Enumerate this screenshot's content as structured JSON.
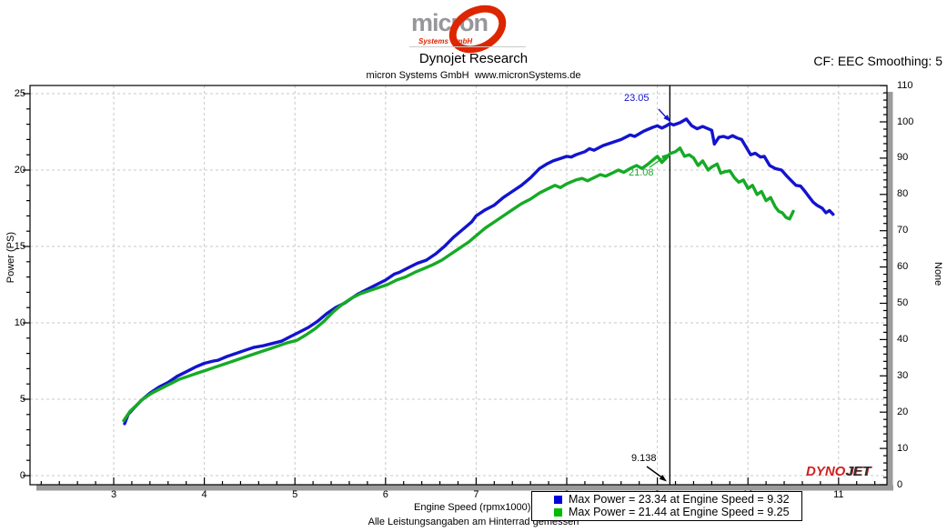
{
  "page": {
    "title": "Dynojet Research",
    "subtitle": "micron Systems GmbH  www.micronSystems.de",
    "cf_label": "CF: EEC Smoothing: 5",
    "footer_note": "Alle Leistungsangaben am Hinterrad gemessen"
  },
  "logo": {
    "text": "micron",
    "sub": "Systems GmbH"
  },
  "dynojet_logo": {
    "part1": "DYNO",
    "part2": "JET"
  },
  "legend": {
    "items": [
      {
        "color": "#0000dd",
        "label": "Max Power = 23.34 at Engine Speed = 9.32"
      },
      {
        "color": "#00bb00",
        "label": "Max Power = 21.44 at Engine Speed = 9.25"
      }
    ]
  },
  "chart_data": {
    "type": "line",
    "xlabel": "Engine Speed (rpmx1000)",
    "ylabel_left": "Power (PS)",
    "ylabel_right": "None",
    "x_ticks": [
      3,
      4,
      5,
      6,
      7,
      8,
      9,
      10,
      11
    ],
    "xlim": [
      2.08,
      11.53
    ],
    "y_left_ticks": [
      0,
      5,
      10,
      15,
      20,
      25
    ],
    "ylim_left": [
      -0.6,
      25.6
    ],
    "y_right_ticks": [
      0,
      10,
      20,
      30,
      40,
      50,
      60,
      70,
      80,
      90,
      100,
      110
    ],
    "ylim_right": [
      0,
      110.2
    ],
    "grid": true,
    "marker_line_x": 9.138,
    "annotations": [
      {
        "id": "blue-peak-at-marker",
        "text": "23.05",
        "color": "#1313cf"
      },
      {
        "id": "green-peak-at-marker",
        "text": "21.08",
        "color": "#16aa26"
      },
      {
        "id": "marker-speed",
        "text": "9.138",
        "color": "#000000"
      }
    ],
    "series": [
      {
        "name": "power-blue",
        "color": "#1313cf",
        "max_power": 23.34,
        "max_power_rpm": 9.32,
        "label": "Max Power = 23.34 at Engine Speed = 9.32",
        "points": [
          [
            3.12,
            3.4
          ],
          [
            3.16,
            4.0
          ],
          [
            3.22,
            4.4
          ],
          [
            3.3,
            4.9
          ],
          [
            3.4,
            5.4
          ],
          [
            3.5,
            5.8
          ],
          [
            3.6,
            6.1
          ],
          [
            3.7,
            6.5
          ],
          [
            3.8,
            6.8
          ],
          [
            3.9,
            7.1
          ],
          [
            4.0,
            7.35
          ],
          [
            4.1,
            7.5
          ],
          [
            4.15,
            7.55
          ],
          [
            4.25,
            7.8
          ],
          [
            4.35,
            8.0
          ],
          [
            4.45,
            8.2
          ],
          [
            4.55,
            8.4
          ],
          [
            4.65,
            8.5
          ],
          [
            4.75,
            8.65
          ],
          [
            4.85,
            8.8
          ],
          [
            4.95,
            9.1
          ],
          [
            5.05,
            9.4
          ],
          [
            5.15,
            9.7
          ],
          [
            5.25,
            10.1
          ],
          [
            5.35,
            10.6
          ],
          [
            5.45,
            11.0
          ],
          [
            5.55,
            11.3
          ],
          [
            5.65,
            11.7
          ],
          [
            5.7,
            11.9
          ],
          [
            5.8,
            12.2
          ],
          [
            5.9,
            12.5
          ],
          [
            6.0,
            12.8
          ],
          [
            6.1,
            13.2
          ],
          [
            6.15,
            13.3
          ],
          [
            6.25,
            13.6
          ],
          [
            6.35,
            13.9
          ],
          [
            6.45,
            14.1
          ],
          [
            6.55,
            14.5
          ],
          [
            6.65,
            15.0
          ],
          [
            6.75,
            15.6
          ],
          [
            6.85,
            16.1
          ],
          [
            6.95,
            16.6
          ],
          [
            7.0,
            17.0
          ],
          [
            7.1,
            17.4
          ],
          [
            7.2,
            17.7
          ],
          [
            7.3,
            18.2
          ],
          [
            7.4,
            18.6
          ],
          [
            7.5,
            19.0
          ],
          [
            7.6,
            19.5
          ],
          [
            7.7,
            20.1
          ],
          [
            7.78,
            20.4
          ],
          [
            7.85,
            20.6
          ],
          [
            7.95,
            20.8
          ],
          [
            8.0,
            20.9
          ],
          [
            8.05,
            20.85
          ],
          [
            8.1,
            21.0
          ],
          [
            8.2,
            21.2
          ],
          [
            8.25,
            21.4
          ],
          [
            8.3,
            21.3
          ],
          [
            8.4,
            21.6
          ],
          [
            8.5,
            21.8
          ],
          [
            8.6,
            22.0
          ],
          [
            8.7,
            22.3
          ],
          [
            8.75,
            22.2
          ],
          [
            8.85,
            22.55
          ],
          [
            8.95,
            22.8
          ],
          [
            9.0,
            22.9
          ],
          [
            9.05,
            22.75
          ],
          [
            9.1,
            22.9
          ],
          [
            9.14,
            23.05
          ],
          [
            9.18,
            22.95
          ],
          [
            9.25,
            23.1
          ],
          [
            9.32,
            23.34
          ],
          [
            9.38,
            22.9
          ],
          [
            9.44,
            22.7
          ],
          [
            9.5,
            22.85
          ],
          [
            9.56,
            22.7
          ],
          [
            9.6,
            22.6
          ],
          [
            9.63,
            21.7
          ],
          [
            9.68,
            22.15
          ],
          [
            9.73,
            22.2
          ],
          [
            9.78,
            22.1
          ],
          [
            9.83,
            22.25
          ],
          [
            9.88,
            22.1
          ],
          [
            9.93,
            22.0
          ],
          [
            9.98,
            21.5
          ],
          [
            10.03,
            21.0
          ],
          [
            10.08,
            21.1
          ],
          [
            10.14,
            20.85
          ],
          [
            10.18,
            20.9
          ],
          [
            10.24,
            20.3
          ],
          [
            10.3,
            20.1
          ],
          [
            10.37,
            20.0
          ],
          [
            10.43,
            19.6
          ],
          [
            10.48,
            19.3
          ],
          [
            10.53,
            19.0
          ],
          [
            10.58,
            18.95
          ],
          [
            10.63,
            18.6
          ],
          [
            10.68,
            18.2
          ],
          [
            10.72,
            17.9
          ],
          [
            10.76,
            17.7
          ],
          [
            10.82,
            17.5
          ],
          [
            10.86,
            17.2
          ],
          [
            10.9,
            17.35
          ],
          [
            10.94,
            17.1
          ]
        ]
      },
      {
        "name": "power-green",
        "color": "#16aa26",
        "max_power": 21.44,
        "max_power_rpm": 9.25,
        "label": "Max Power = 21.44 at Engine Speed = 9.25",
        "points": [
          [
            3.11,
            3.6
          ],
          [
            3.18,
            4.2
          ],
          [
            3.25,
            4.6
          ],
          [
            3.32,
            5.0
          ],
          [
            3.42,
            5.4
          ],
          [
            3.52,
            5.7
          ],
          [
            3.62,
            6.0
          ],
          [
            3.72,
            6.3
          ],
          [
            3.82,
            6.5
          ],
          [
            3.92,
            6.7
          ],
          [
            4.02,
            6.9
          ],
          [
            4.12,
            7.1
          ],
          [
            4.22,
            7.3
          ],
          [
            4.32,
            7.5
          ],
          [
            4.42,
            7.7
          ],
          [
            4.52,
            7.9
          ],
          [
            4.62,
            8.1
          ],
          [
            4.72,
            8.3
          ],
          [
            4.82,
            8.5
          ],
          [
            4.92,
            8.7
          ],
          [
            5.02,
            8.85
          ],
          [
            5.12,
            9.2
          ],
          [
            5.22,
            9.6
          ],
          [
            5.32,
            10.1
          ],
          [
            5.42,
            10.7
          ],
          [
            5.52,
            11.2
          ],
          [
            5.62,
            11.6
          ],
          [
            5.72,
            11.9
          ],
          [
            5.82,
            12.1
          ],
          [
            5.92,
            12.3
          ],
          [
            6.02,
            12.5
          ],
          [
            6.12,
            12.8
          ],
          [
            6.22,
            13.0
          ],
          [
            6.32,
            13.3
          ],
          [
            6.42,
            13.55
          ],
          [
            6.52,
            13.8
          ],
          [
            6.62,
            14.1
          ],
          [
            6.72,
            14.5
          ],
          [
            6.82,
            14.9
          ],
          [
            6.92,
            15.3
          ],
          [
            7.0,
            15.7
          ],
          [
            7.1,
            16.2
          ],
          [
            7.2,
            16.6
          ],
          [
            7.3,
            17.0
          ],
          [
            7.4,
            17.4
          ],
          [
            7.5,
            17.8
          ],
          [
            7.6,
            18.1
          ],
          [
            7.7,
            18.5
          ],
          [
            7.8,
            18.8
          ],
          [
            7.87,
            19.0
          ],
          [
            7.93,
            18.85
          ],
          [
            8.0,
            19.1
          ],
          [
            8.1,
            19.35
          ],
          [
            8.17,
            19.45
          ],
          [
            8.23,
            19.3
          ],
          [
            8.3,
            19.5
          ],
          [
            8.37,
            19.7
          ],
          [
            8.43,
            19.6
          ],
          [
            8.5,
            19.8
          ],
          [
            8.57,
            20.0
          ],
          [
            8.63,
            19.85
          ],
          [
            8.7,
            20.1
          ],
          [
            8.77,
            20.3
          ],
          [
            8.83,
            20.1
          ],
          [
            8.9,
            20.4
          ],
          [
            8.96,
            20.7
          ],
          [
            9.0,
            20.9
          ],
          [
            9.05,
            20.5
          ],
          [
            9.1,
            20.8
          ],
          [
            9.14,
            21.08
          ],
          [
            9.2,
            21.2
          ],
          [
            9.25,
            21.44
          ],
          [
            9.3,
            20.9
          ],
          [
            9.35,
            21.0
          ],
          [
            9.4,
            20.8
          ],
          [
            9.45,
            20.3
          ],
          [
            9.5,
            20.6
          ],
          [
            9.56,
            20.0
          ],
          [
            9.6,
            20.2
          ],
          [
            9.66,
            20.4
          ],
          [
            9.7,
            19.8
          ],
          [
            9.75,
            19.9
          ],
          [
            9.8,
            19.95
          ],
          [
            9.85,
            19.5
          ],
          [
            9.9,
            19.2
          ],
          [
            9.95,
            19.35
          ],
          [
            10.0,
            18.8
          ],
          [
            10.05,
            19.0
          ],
          [
            10.1,
            18.4
          ],
          [
            10.15,
            18.6
          ],
          [
            10.2,
            18.0
          ],
          [
            10.25,
            18.2
          ],
          [
            10.3,
            17.6
          ],
          [
            10.34,
            17.3
          ],
          [
            10.38,
            17.2
          ],
          [
            10.42,
            16.9
          ],
          [
            10.46,
            16.8
          ],
          [
            10.5,
            17.3
          ]
        ]
      }
    ]
  }
}
